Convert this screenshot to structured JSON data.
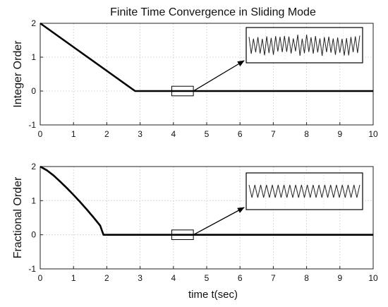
{
  "figure_title": "Finite Time Convergence in Sliding Mode",
  "chart_data": [
    {
      "type": "line",
      "title": "Finite Time Convergence in Sliding Mode",
      "ylabel": "Integer Order",
      "xlabel": "",
      "xlim": [
        0,
        10
      ],
      "ylim": [
        -1,
        2
      ],
      "xticks": [
        0,
        1,
        2,
        3,
        4,
        5,
        6,
        7,
        8,
        9,
        10
      ],
      "yticks": [
        -1,
        0,
        1,
        2
      ],
      "grid": true,
      "series": [
        {
          "x": [
            0,
            2.85,
            10
          ],
          "y": [
            2,
            0,
            0
          ]
        }
      ],
      "zoom_inset": {
        "source_x_range": [
          3.95,
          4.6
        ],
        "source_y_range": [
          -0.1,
          0.1
        ],
        "signal": "chattering",
        "oscillation_cycles": 25,
        "amplitude": 0.8
      }
    },
    {
      "type": "line",
      "title": "",
      "ylabel": "Fractional Order",
      "xlabel": "time t(sec)",
      "xlim": [
        0,
        10
      ],
      "ylim": [
        -1,
        2
      ],
      "xticks": [
        0,
        1,
        2,
        3,
        4,
        5,
        6,
        7,
        8,
        9,
        10
      ],
      "yticks": [
        -1,
        0,
        1,
        2
      ],
      "grid": true,
      "series": [
        {
          "x": [
            0,
            0.2,
            0.4,
            0.6,
            0.8,
            1.0,
            1.2,
            1.4,
            1.6,
            1.8,
            1.9,
            10
          ],
          "y": [
            2,
            1.89,
            1.74,
            1.56,
            1.37,
            1.17,
            0.96,
            0.74,
            0.51,
            0.27,
            0.0,
            0.0
          ]
        }
      ],
      "zoom_inset": {
        "source_x_range": [
          3.95,
          4.6
        ],
        "source_y_range": [
          -0.1,
          0.1
        ],
        "signal": "chattering",
        "oscillation_cycles": 19,
        "amplitude": 0.45
      }
    }
  ]
}
